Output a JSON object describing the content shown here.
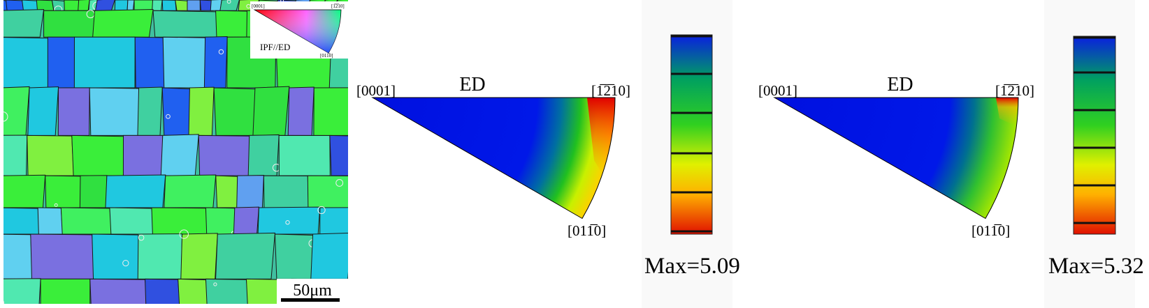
{
  "ebsd_map": {
    "legend": {
      "pole_a": "[0001]",
      "pole_b": "[1̅2̅10]",
      "pole_c": "[011̅0]",
      "title": "IPF//ED"
    },
    "scale_bar": "50μm"
  },
  "pole_figures": [
    {
      "direction": "ED",
      "poles": [
        "[0001]",
        "[1̅2̅10]",
        "[011̅0]"
      ],
      "max_label": "Max=5.09"
    },
    {
      "direction": "ED",
      "poles": [
        "[0001]",
        "[1̅2̅10]",
        "[011̅0]"
      ],
      "max_label": "Max=5.32"
    }
  ]
}
